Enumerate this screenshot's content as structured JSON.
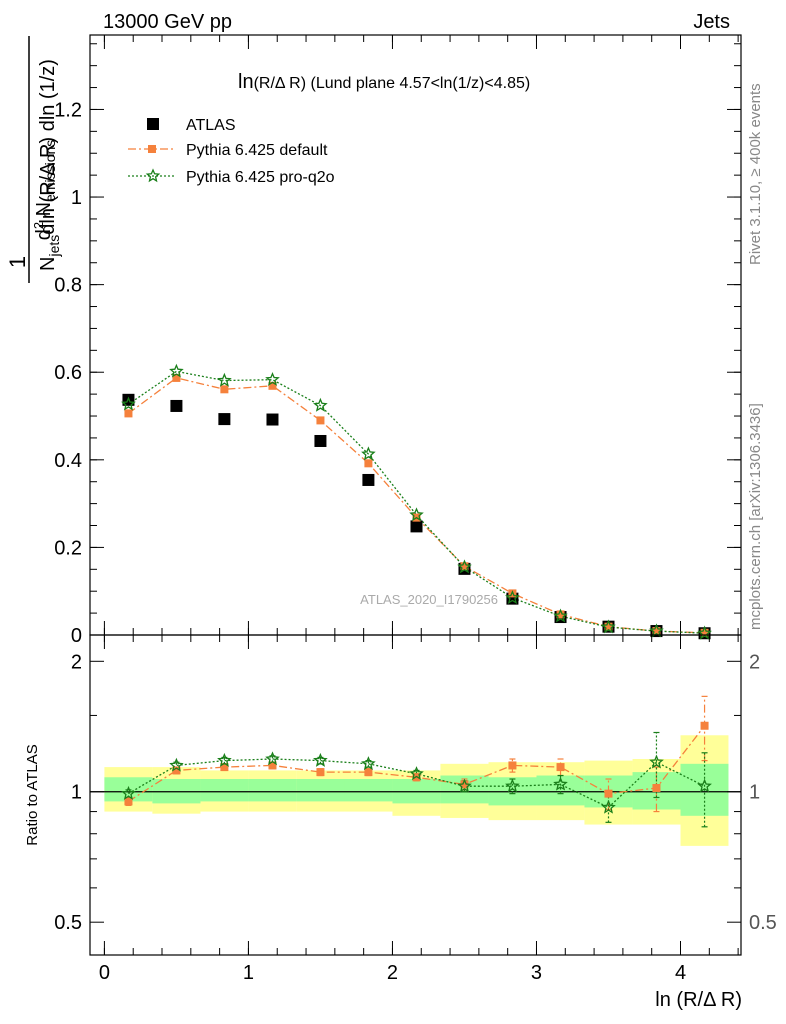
{
  "header": {
    "left": "13000 GeV pp",
    "right": "Jets"
  },
  "side_labels": {
    "rivet": "Rivet 3.1.10, ≥ 400k events",
    "mcplots": "mcplots.cern.ch [arXiv:1306.3436]"
  },
  "watermark": "ATLAS_2020_I1790256",
  "main_title": {
    "prefix": "ln",
    "body": "(R/Δ R) (Lund plane 4.57<ln(1/z)<4.85)"
  },
  "ylabel": {
    "num": "1",
    "den_main": "N",
    "den_sub": "jets",
    "den_rest": "dln (R/Δ R) dln (1/z)",
    "top_pre": "d",
    "top_sup": "2",
    "top_main": " N",
    "top_sub": "emissions"
  },
  "xlabel": "ln (R/Δ R)",
  "ratio_ylabel": "Ratio to ATLAS",
  "legend": [
    {
      "label": "ATLAS",
      "color": "#000000",
      "marker": "square"
    },
    {
      "label": "Pythia 6.425 default",
      "color": "#f5813c",
      "marker": "square-dashdot"
    },
    {
      "label": "Pythia 6.425 pro-q2o",
      "color": "#1a7f1a",
      "marker": "star-dotted"
    }
  ],
  "chart_data": [
    {
      "type": "scatter",
      "xlim": [
        -0.1,
        4.42
      ],
      "ylim": [
        0,
        1.37
      ],
      "x_ticks": [
        0,
        1,
        2,
        3,
        4
      ],
      "y_ticks": [
        0,
        0.2,
        0.4,
        0.6,
        0.8,
        1,
        1.2
      ],
      "y_tick_labels": [
        "0",
        "0.2",
        "0.4",
        "0.6",
        "0.8",
        "1",
        "1.2"
      ],
      "x": [
        0.167,
        0.5,
        0.833,
        1.167,
        1.5,
        1.833,
        2.167,
        2.5,
        2.833,
        3.167,
        3.5,
        3.833,
        4.167
      ],
      "series": [
        {
          "name": "ATLAS",
          "color": "#000000",
          "values": [
            0.537,
            0.523,
            0.493,
            0.492,
            0.443,
            0.354,
            0.248,
            0.151,
            0.083,
            0.041,
            0.019,
            0.009,
            0.004
          ]
        },
        {
          "name": "Pythia 6.425 default",
          "color": "#f5813c",
          "values": [
            0.506,
            0.587,
            0.561,
            0.569,
            0.49,
            0.392,
            0.268,
            0.157,
            0.095,
            0.047,
            0.019,
            0.009,
            0.005
          ]
        },
        {
          "name": "Pythia 6.425 pro-q2o",
          "color": "#1a7f1a",
          "values": [
            0.527,
            0.602,
            0.581,
            0.583,
            0.524,
            0.413,
            0.274,
            0.155,
            0.085,
            0.043,
            0.018,
            0.009,
            0.004
          ]
        }
      ]
    },
    {
      "type": "scatter",
      "ylabel": "Ratio to ATLAS",
      "xlabel": "ln (R/Δ R)",
      "log_y": true,
      "ylim": [
        0.42,
        2.3
      ],
      "x_ticks": [
        0,
        1,
        2,
        3,
        4
      ],
      "y_tick_labels": [
        "0.5",
        "1",
        "2"
      ],
      "y_ticks": [
        0.5,
        1,
        2
      ],
      "bin_edges": [
        0,
        0.333,
        0.667,
        1.0,
        1.333,
        1.667,
        2.0,
        2.333,
        2.667,
        3.0,
        3.333,
        3.667,
        4.0,
        4.333
      ],
      "band_green": [
        [
          0.95,
          1.08
        ],
        [
          0.94,
          1.07
        ],
        [
          0.95,
          1.07
        ],
        [
          0.95,
          1.07
        ],
        [
          0.95,
          1.07
        ],
        [
          0.95,
          1.07
        ],
        [
          0.94,
          1.07
        ],
        [
          0.94,
          1.09
        ],
        [
          0.93,
          1.08
        ],
        [
          0.93,
          1.09
        ],
        [
          0.92,
          1.09
        ],
        [
          0.91,
          1.11
        ],
        [
          0.88,
          1.16
        ]
      ],
      "band_yellow": [
        [
          0.9,
          1.14
        ],
        [
          0.89,
          1.14
        ],
        [
          0.9,
          1.12
        ],
        [
          0.9,
          1.12
        ],
        [
          0.9,
          1.12
        ],
        [
          0.9,
          1.12
        ],
        [
          0.88,
          1.12
        ],
        [
          0.87,
          1.16
        ],
        [
          0.86,
          1.17
        ],
        [
          0.86,
          1.17
        ],
        [
          0.84,
          1.18
        ],
        [
          0.84,
          1.19
        ],
        [
          0.75,
          1.35
        ]
      ],
      "x": [
        0.167,
        0.5,
        0.833,
        1.167,
        1.5,
        1.833,
        2.167,
        2.5,
        2.833,
        3.167,
        3.5,
        3.833,
        4.167
      ],
      "series": [
        {
          "name": "Pythia 6.425 default",
          "color": "#f5813c",
          "values": [
            0.95,
            1.12,
            1.14,
            1.15,
            1.11,
            1.11,
            1.08,
            1.04,
            1.15,
            1.14,
            0.99,
            1.02,
            1.42
          ],
          "err": [
            0.02,
            0.02,
            0.02,
            0.02,
            0.02,
            0.02,
            0.02,
            0.03,
            0.04,
            0.05,
            0.08,
            0.12,
            0.24
          ]
        },
        {
          "name": "Pythia 6.425 pro-q2o",
          "color": "#1a7f1a",
          "values": [
            0.99,
            1.15,
            1.18,
            1.19,
            1.18,
            1.16,
            1.1,
            1.03,
            1.03,
            1.04,
            0.92,
            1.17,
            1.03
          ],
          "err": [
            0.02,
            0.02,
            0.02,
            0.02,
            0.02,
            0.02,
            0.02,
            0.03,
            0.04,
            0.05,
            0.07,
            0.2,
            0.2
          ]
        }
      ]
    }
  ]
}
